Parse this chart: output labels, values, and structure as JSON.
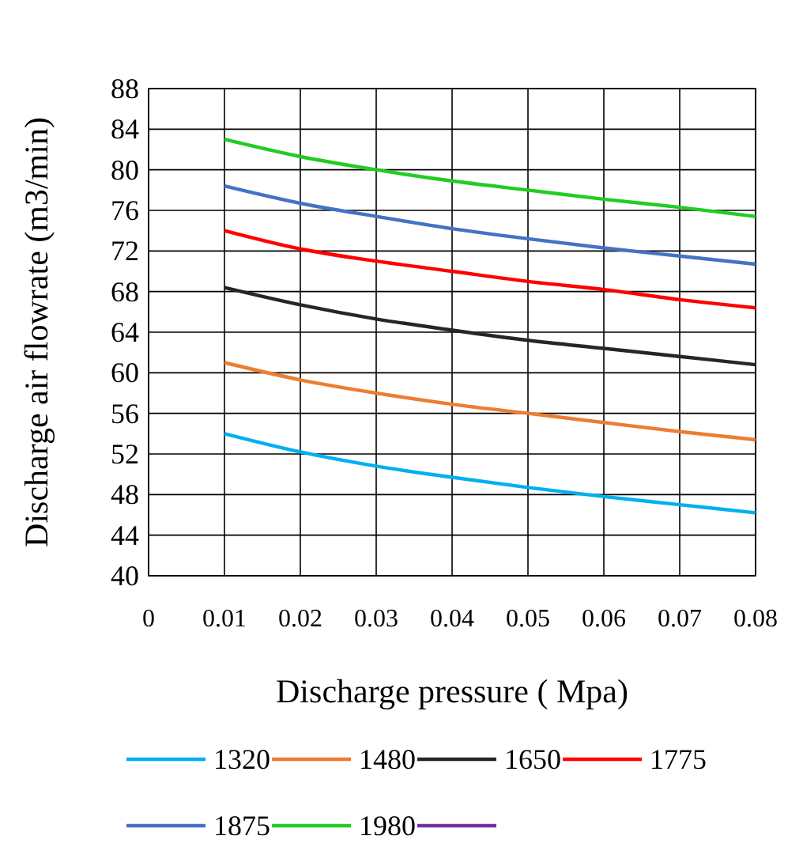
{
  "chart_data": {
    "type": "line",
    "xlabel": "Discharge pressure ( Mpa)",
    "ylabel": "Discharge air flowrate (m3/min)",
    "x": [
      0.01,
      0.02,
      0.03,
      0.04,
      0.05,
      0.06,
      0.07,
      0.08
    ],
    "xlim": [
      0,
      0.08
    ],
    "xticks": [
      0,
      0.01,
      0.02,
      0.03,
      0.04,
      0.05,
      0.06,
      0.07,
      0.08
    ],
    "ylim": [
      40,
      88
    ],
    "yticks": [
      40,
      44,
      48,
      52,
      56,
      60,
      64,
      68,
      72,
      76,
      80,
      84,
      88
    ],
    "grid": true,
    "legend": "bottom",
    "marker": "none",
    "line_style": "solid",
    "series": [
      {
        "name": "1320",
        "color": "#00b0f0",
        "values": [
          54,
          52.2,
          50.8,
          49.7,
          48.7,
          47.8,
          47,
          46.2
        ]
      },
      {
        "name": "1480",
        "color": "#ed7d31",
        "values": [
          61,
          59.3,
          58,
          56.9,
          56,
          55.1,
          54.2,
          53.4
        ]
      },
      {
        "name": "1650",
        "color": "#262626",
        "values": [
          68.4,
          66.7,
          65.3,
          64.2,
          63.2,
          62.4,
          61.6,
          60.8
        ]
      },
      {
        "name": "1775",
        "color": "#ff0000",
        "values": [
          74,
          72.2,
          71,
          70,
          69,
          68.2,
          67.2,
          66.4
        ]
      },
      {
        "name": "1875",
        "color": "#4472c4",
        "values": [
          78.4,
          76.7,
          75.4,
          74.2,
          73.2,
          72.3,
          71.5,
          70.7
        ]
      },
      {
        "name": "1980",
        "color": "#22cc22",
        "values": [
          83,
          81.3,
          80,
          78.9,
          78,
          77.1,
          76.3,
          75.4
        ]
      },
      {
        "color": "#7030a0",
        "values": [
          null,
          null,
          null,
          null,
          null,
          null,
          null,
          null
        ]
      }
    ]
  }
}
